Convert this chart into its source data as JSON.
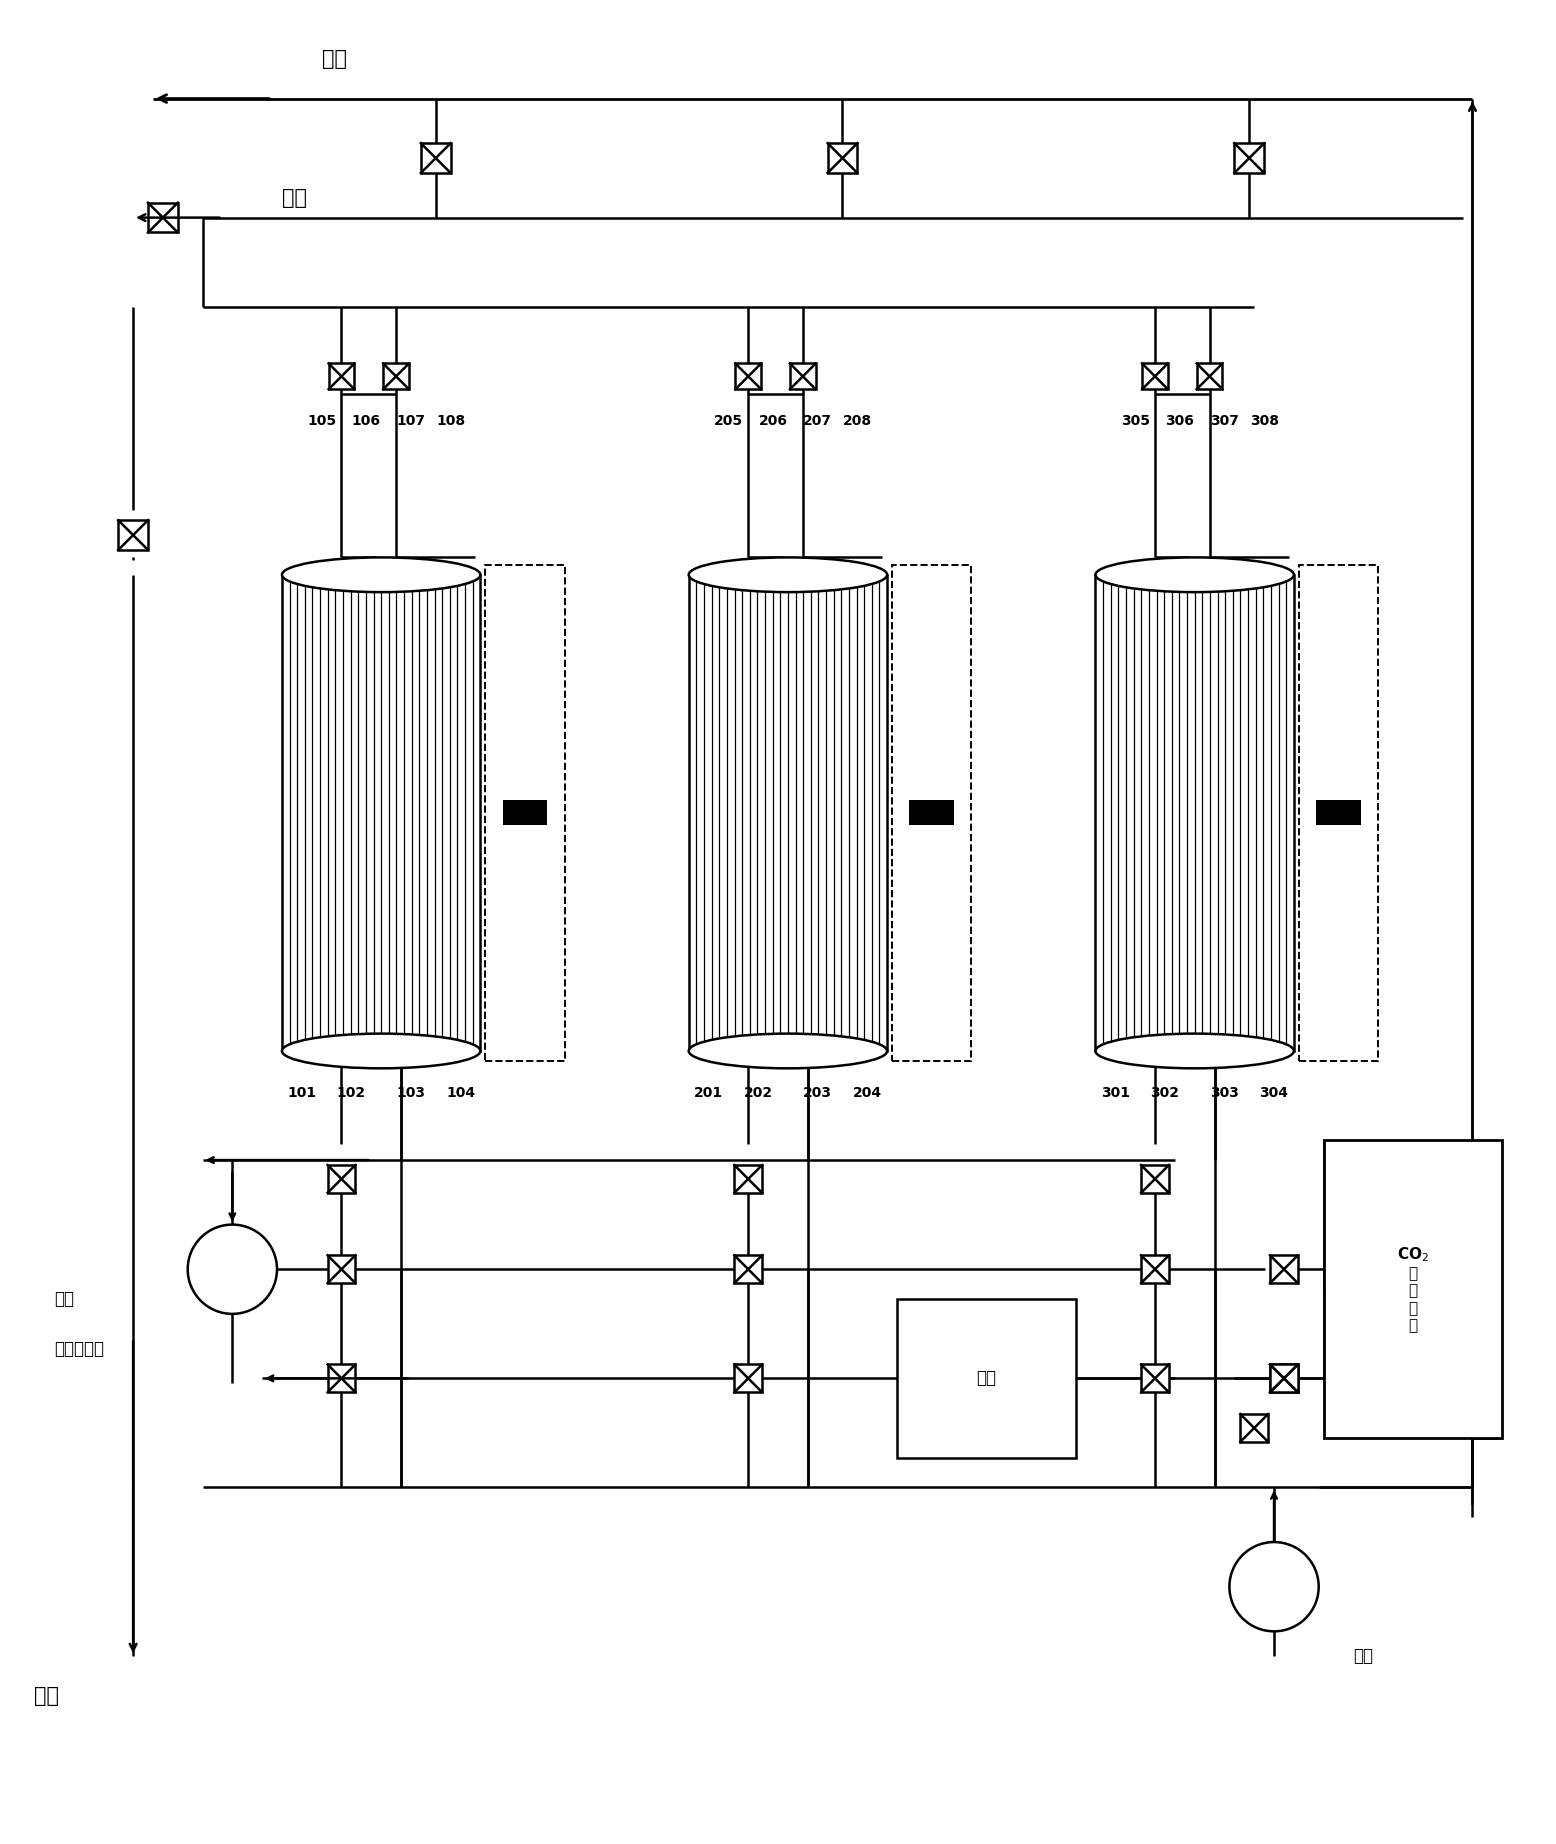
{
  "figure_size": [
    15.56,
    18.44
  ],
  "dpi": 100,
  "bg_color": "#ffffff",
  "lc": "#000000",
  "lw": 1.8,
  "adsorber_labels": [
    [
      "101",
      "102",
      "103",
      "104"
    ],
    [
      "201",
      "202",
      "203",
      "204"
    ],
    [
      "301",
      "302",
      "303",
      "304"
    ]
  ],
  "top_valve_labels": [
    [
      "105",
      "106",
      "107",
      "108"
    ],
    [
      "205",
      "206",
      "207",
      "208"
    ],
    [
      "305",
      "306",
      "307",
      "308"
    ]
  ],
  "text_paiqi_top": "排气",
  "text_paiqi2": "排气",
  "text_jinliao": "进料",
  "text_lengjue1": "冷却",
  "text_ganzhao": "干燥除水汽",
  "text_lengjue2": "冷却",
  "text_qiguan": "气罐",
  "text_co2": "CO2"
}
